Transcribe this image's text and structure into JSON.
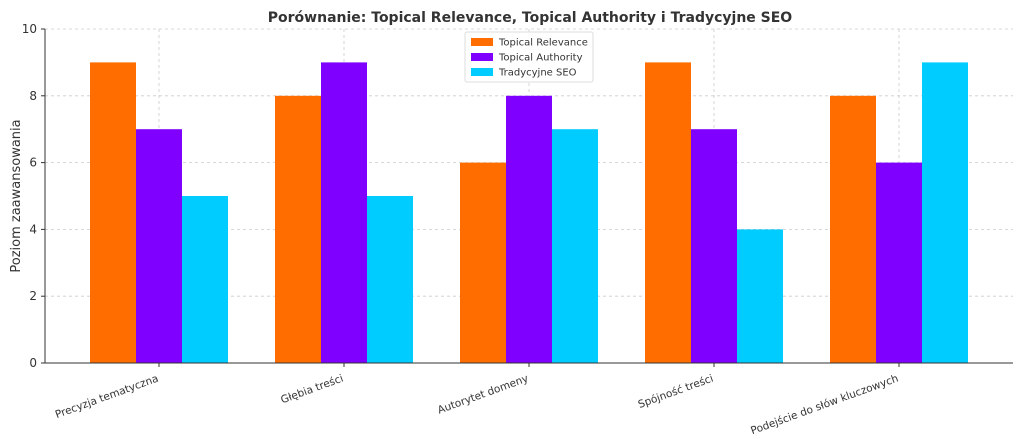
{
  "chart_data": {
    "type": "bar",
    "title": "Porównanie: Topical Relevance, Topical Authority i Tradycyjne SEO",
    "xlabel": "",
    "ylabel": "Poziom zaawansowania",
    "categories": [
      "Precyzja tematyczna",
      "Głębia treści",
      "Autorytet domeny",
      "Spójność treści",
      "Podejście do słów kluczowych"
    ],
    "series": [
      {
        "name": "Topical Relevance",
        "values": [
          9,
          8,
          6,
          9,
          8
        ],
        "color": "#ff6d00"
      },
      {
        "name": "Topical Authority",
        "values": [
          7,
          9,
          8,
          7,
          6
        ],
        "color": "#7f00ff"
      },
      {
        "name": "Tradycyjne SEO",
        "values": [
          5,
          5,
          7,
          4,
          9
        ],
        "color": "#00ccff"
      }
    ],
    "ylim": [
      0,
      10
    ],
    "yticks": [
      0,
      2,
      4,
      6,
      8,
      10
    ],
    "grid": true,
    "legend_position": "top-center"
  }
}
